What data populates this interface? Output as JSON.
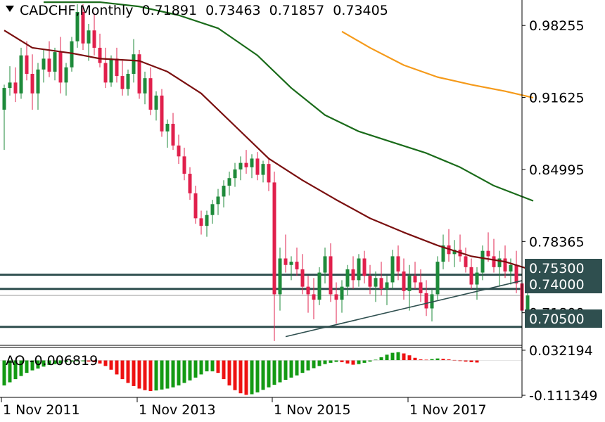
{
  "header": {
    "symbol_timeframe": "CADCHF,Monthly",
    "open": "0.71891",
    "high": "0.73463",
    "low": "0.71857",
    "close": "0.73405"
  },
  "indicator": {
    "name": "AO",
    "value": "-0.006819"
  },
  "colors": {
    "bull": "#1e8a3a",
    "bear": "#e0204c",
    "ma_short": "#7a0f0f",
    "ma_mid": "#1a6b1a",
    "ma_long": "#f59a1a",
    "level_line": "#2f4f4f",
    "trend_line": "#2f4f4f",
    "ao_up": "#139a13",
    "ao_down": "#ee1111",
    "label_bg": "#2f4f4f",
    "label_text": "#ffffff"
  },
  "chart_data": {
    "type": "candlestick",
    "price_axis": {
      "ticks": [
        "0.98255",
        "0.91625",
        "0.84995",
        "0.78365",
        "0.71800"
      ],
      "range": [
        0.688,
        1.006
      ]
    },
    "time_axis": {
      "labels": [
        "1 Nov 2011",
        "1 Nov 2013",
        "1 Nov 2015",
        "1 Nov 2017"
      ]
    },
    "level_labels": [
      {
        "value": 0.753,
        "text": "0.75300",
        "line": true
      },
      {
        "value": 0.74,
        "text": "0.74000",
        "line": true
      },
      {
        "value": 0.705,
        "text": "0.70500",
        "line": true
      }
    ],
    "thin_line": 0.734,
    "trend_line": {
      "from": [
        "2015-03",
        0.696
      ],
      "to": [
        "2018-11",
        0.75
      ]
    },
    "start_month": "2011-01",
    "candles": [
      [
        0.905,
        0.928,
        0.868,
        0.925
      ],
      [
        0.925,
        0.945,
        0.918,
        0.93
      ],
      [
        0.93,
        0.944,
        0.912,
        0.92
      ],
      [
        0.92,
        0.962,
        0.915,
        0.955
      ],
      [
        0.955,
        0.968,
        0.932,
        0.938
      ],
      [
        0.938,
        0.956,
        0.905,
        0.92
      ],
      [
        0.92,
        0.948,
        0.905,
        0.942
      ],
      [
        0.942,
        0.96,
        0.93,
        0.952
      ],
      [
        0.952,
        0.968,
        0.935,
        0.94
      ],
      [
        0.94,
        0.962,
        0.932,
        0.958
      ],
      [
        0.958,
        0.972,
        0.92,
        0.93
      ],
      [
        0.93,
        0.948,
        0.918,
        0.944
      ],
      [
        0.944,
        0.972,
        0.94,
        0.968
      ],
      [
        0.968,
        1.002,
        0.962,
        0.995
      ],
      [
        0.995,
        1.002,
        0.96,
        0.966
      ],
      [
        0.966,
        0.984,
        0.95,
        0.978
      ],
      [
        0.978,
        0.994,
        0.955,
        0.962
      ],
      [
        0.962,
        0.975,
        0.944,
        0.948
      ],
      [
        0.948,
        0.962,
        0.925,
        0.93
      ],
      [
        0.93,
        0.955,
        0.926,
        0.952
      ],
      [
        0.952,
        0.962,
        0.93,
        0.936
      ],
      [
        0.936,
        0.95,
        0.918,
        0.924
      ],
      [
        0.924,
        0.942,
        0.918,
        0.938
      ],
      [
        0.938,
        0.97,
        0.93,
        0.956
      ],
      [
        0.956,
        0.96,
        0.915,
        0.92
      ],
      [
        0.92,
        0.94,
        0.91,
        0.934
      ],
      [
        0.934,
        0.944,
        0.9,
        0.905
      ],
      [
        0.905,
        0.922,
        0.895,
        0.918
      ],
      [
        0.918,
        0.924,
        0.88,
        0.885
      ],
      [
        0.885,
        0.896,
        0.87,
        0.892
      ],
      [
        0.892,
        0.902,
        0.868,
        0.872
      ],
      [
        0.872,
        0.882,
        0.855,
        0.862
      ],
      [
        0.862,
        0.87,
        0.84,
        0.846
      ],
      [
        0.846,
        0.852,
        0.822,
        0.828
      ],
      [
        0.828,
        0.835,
        0.8,
        0.805
      ],
      [
        0.805,
        0.812,
        0.79,
        0.798
      ],
      [
        0.798,
        0.812,
        0.788,
        0.808
      ],
      [
        0.808,
        0.822,
        0.8,
        0.818
      ],
      [
        0.818,
        0.832,
        0.808,
        0.825
      ],
      [
        0.825,
        0.84,
        0.815,
        0.835
      ],
      [
        0.835,
        0.848,
        0.826,
        0.842
      ],
      [
        0.842,
        0.856,
        0.834,
        0.85
      ],
      [
        0.85,
        0.862,
        0.84,
        0.856
      ],
      [
        0.856,
        0.868,
        0.846,
        0.852
      ],
      [
        0.852,
        0.864,
        0.842,
        0.86
      ],
      [
        0.86,
        0.866,
        0.84,
        0.845
      ],
      [
        0.845,
        0.858,
        0.838,
        0.855
      ],
      [
        0.855,
        0.86,
        0.83,
        0.838
      ],
      [
        0.838,
        0.848,
        0.692,
        0.735
      ],
      [
        0.735,
        0.778,
        0.72,
        0.768
      ],
      [
        0.768,
        0.79,
        0.755,
        0.762
      ],
      [
        0.762,
        0.77,
        0.748,
        0.765
      ],
      [
        0.765,
        0.778,
        0.752,
        0.758
      ],
      [
        0.758,
        0.772,
        0.735,
        0.742
      ],
      [
        0.742,
        0.752,
        0.718,
        0.735
      ],
      [
        0.735,
        0.75,
        0.712,
        0.73
      ],
      [
        0.73,
        0.76,
        0.725,
        0.755
      ],
      [
        0.755,
        0.778,
        0.745,
        0.77
      ],
      [
        0.77,
        0.782,
        0.728,
        0.735
      ],
      [
        0.735,
        0.746,
        0.708,
        0.73
      ],
      [
        0.73,
        0.748,
        0.718,
        0.742
      ],
      [
        0.742,
        0.762,
        0.734,
        0.758
      ],
      [
        0.758,
        0.77,
        0.74,
        0.748
      ],
      [
        0.748,
        0.772,
        0.742,
        0.768
      ],
      [
        0.768,
        0.775,
        0.745,
        0.752
      ],
      [
        0.752,
        0.762,
        0.735,
        0.742
      ],
      [
        0.742,
        0.756,
        0.728,
        0.75
      ],
      [
        0.75,
        0.765,
        0.734,
        0.74
      ],
      [
        0.74,
        0.752,
        0.725,
        0.746
      ],
      [
        0.746,
        0.776,
        0.74,
        0.77
      ],
      [
        0.77,
        0.78,
        0.748,
        0.756
      ],
      [
        0.756,
        0.768,
        0.73,
        0.738
      ],
      [
        0.738,
        0.762,
        0.72,
        0.752
      ],
      [
        0.752,
        0.765,
        0.74,
        0.746
      ],
      [
        0.746,
        0.758,
        0.728,
        0.736
      ],
      [
        0.736,
        0.748,
        0.715,
        0.722
      ],
      [
        0.722,
        0.74,
        0.71,
        0.735
      ],
      [
        0.735,
        0.77,
        0.73,
        0.765
      ],
      [
        0.765,
        0.79,
        0.758,
        0.78
      ],
      [
        0.78,
        0.795,
        0.765,
        0.772
      ],
      [
        0.772,
        0.785,
        0.76,
        0.776
      ],
      [
        0.776,
        0.79,
        0.765,
        0.77
      ],
      [
        0.77,
        0.778,
        0.755,
        0.76
      ],
      [
        0.76,
        0.768,
        0.74,
        0.744
      ],
      [
        0.744,
        0.76,
        0.73,
        0.755
      ],
      [
        0.755,
        0.78,
        0.748,
        0.775
      ],
      [
        0.775,
        0.792,
        0.765,
        0.77
      ],
      [
        0.77,
        0.786,
        0.755,
        0.76
      ],
      [
        0.76,
        0.775,
        0.742,
        0.768
      ],
      [
        0.768,
        0.78,
        0.75,
        0.756
      ],
      [
        0.756,
        0.768,
        0.744,
        0.762
      ],
      [
        0.762,
        0.775,
        0.736,
        0.745
      ],
      [
        0.745,
        0.756,
        0.718,
        0.72
      ],
      [
        0.72,
        0.738,
        0.716,
        0.734
      ]
    ],
    "ao": {
      "range": [
        -0.1113,
        0.0321
      ],
      "ticks": [
        "0.032194",
        "-0.111349"
      ],
      "values": [
        -0.08,
        -0.07,
        -0.06,
        -0.05,
        -0.04,
        -0.032,
        -0.026,
        -0.02,
        -0.015,
        -0.012,
        -0.01,
        -0.005,
        -0.004,
        -0.003,
        -0.003,
        -0.004,
        -0.006,
        -0.01,
        -0.018,
        -0.03,
        -0.045,
        -0.06,
        -0.072,
        -0.082,
        -0.09,
        -0.095,
        -0.098,
        -0.096,
        -0.093,
        -0.09,
        -0.086,
        -0.08,
        -0.072,
        -0.064,
        -0.055,
        -0.045,
        -0.035,
        -0.035,
        -0.04,
        -0.06,
        -0.08,
        -0.095,
        -0.105,
        -0.11,
        -0.108,
        -0.102,
        -0.094,
        -0.086,
        -0.078,
        -0.07,
        -0.062,
        -0.055,
        -0.048,
        -0.04,
        -0.032,
        -0.025,
        -0.018,
        -0.012,
        -0.008,
        -0.005,
        -0.006,
        -0.01,
        -0.014,
        -0.012,
        -0.008,
        -0.004,
        0.002,
        0.01,
        0.018,
        0.024,
        0.026,
        0.022,
        0.016,
        0.008,
        0.003,
        0.002,
        0.004,
        0.006,
        0.005,
        0.003,
        0.001,
        -0.002,
        -0.004,
        -0.006,
        -0.007
      ]
    },
    "moving_averages": [
      {
        "key": "ma_short",
        "points": [
          [
            "2011-01",
            0.978
          ],
          [
            "2011-06",
            0.962
          ],
          [
            "2012-01",
            0.957
          ],
          [
            "2012-06",
            0.952
          ],
          [
            "2013-01",
            0.95
          ],
          [
            "2013-06",
            0.94
          ],
          [
            "2013-12",
            0.92
          ],
          [
            "2014-06",
            0.89
          ],
          [
            "2014-12",
            0.86
          ],
          [
            "2015-06",
            0.84
          ],
          [
            "2015-12",
            0.822
          ],
          [
            "2016-06",
            0.805
          ],
          [
            "2016-12",
            0.792
          ],
          [
            "2017-06",
            0.78
          ],
          [
            "2017-12",
            0.77
          ],
          [
            "2018-06",
            0.765
          ],
          [
            "2018-11",
            0.757
          ]
        ]
      },
      {
        "key": "ma_mid",
        "points": [
          [
            "2011-08",
            1.004
          ],
          [
            "2012-06",
            1.004
          ],
          [
            "2013-01",
            1.0
          ],
          [
            "2013-08",
            0.992
          ],
          [
            "2014-03",
            0.98
          ],
          [
            "2014-10",
            0.955
          ],
          [
            "2015-04",
            0.925
          ],
          [
            "2015-10",
            0.9
          ],
          [
            "2016-04",
            0.885
          ],
          [
            "2016-10",
            0.875
          ],
          [
            "2017-04",
            0.865
          ],
          [
            "2017-10",
            0.852
          ],
          [
            "2018-04",
            0.835
          ],
          [
            "2018-11",
            0.821
          ]
        ]
      },
      {
        "key": "ma_long",
        "points": [
          [
            "2016-01",
            0.977
          ],
          [
            "2016-06",
            0.962
          ],
          [
            "2016-12",
            0.946
          ],
          [
            "2017-06",
            0.935
          ],
          [
            "2017-12",
            0.928
          ],
          [
            "2018-06",
            0.922
          ],
          [
            "2018-11",
            0.916
          ]
        ]
      }
    ]
  }
}
